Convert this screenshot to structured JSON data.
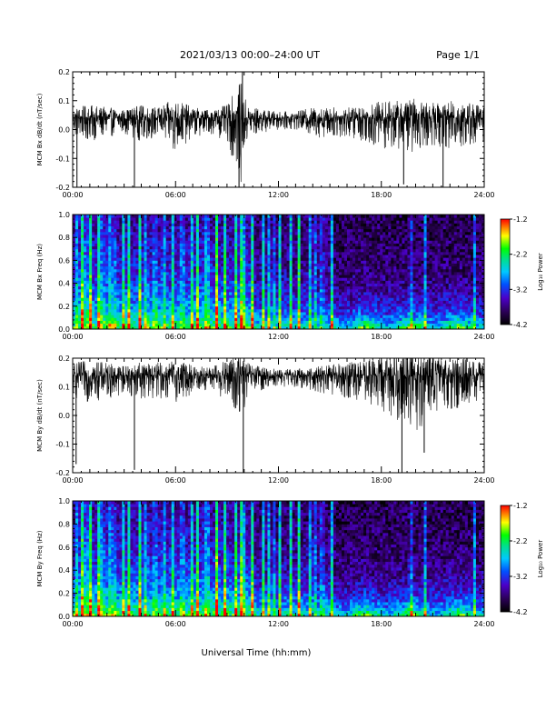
{
  "header": {
    "title": "2021/03/13  00:00–24:00 UT",
    "page_label": "Page 1/1"
  },
  "xaxis_title": "Universal Time (hh:mm)",
  "chart_data": [
    {
      "type": "line",
      "name": "bx-dbdt",
      "ylabel": "MCM Bx dB/dt (nT/sec)",
      "xlim": [
        0,
        24
      ],
      "ylim": [
        -0.2,
        0.2
      ],
      "xticks": [
        "00:00",
        "06:00",
        "12:00",
        "18:00",
        "24:00"
      ],
      "xtick_values": [
        0,
        6,
        12,
        18,
        24
      ],
      "yticks": [
        -0.2,
        -0.1,
        0.0,
        0.1,
        0.2
      ],
      "ytick_labels": [
        "-0.2",
        "-0.1",
        "0.0",
        "0.1",
        "0.2"
      ],
      "baseline": 0.04,
      "amplitude_envelope": {
        "x": [
          0,
          1,
          2,
          3,
          4,
          5,
          6,
          7,
          8,
          9,
          9.8,
          10.2,
          11,
          12,
          13,
          14,
          15,
          16,
          17,
          18,
          19,
          20,
          21,
          22,
          23,
          24
        ],
        "y": [
          0.05,
          0.06,
          0.05,
          0.04,
          0.06,
          0.05,
          0.09,
          0.05,
          0.04,
          0.06,
          0.17,
          0.06,
          0.04,
          0.03,
          0.03,
          0.05,
          0.05,
          0.05,
          0.06,
          0.08,
          0.08,
          0.09,
          0.07,
          0.08,
          0.08,
          0.06
        ]
      },
      "spikes": [
        {
          "x": 0.25,
          "y": -0.2
        },
        {
          "x": 3.6,
          "y": -0.2
        },
        {
          "x": 9.7,
          "y": -0.2
        },
        {
          "x": 9.9,
          "y": 0.2
        },
        {
          "x": 19.3,
          "y": -0.19
        },
        {
          "x": 21.6,
          "y": -0.2
        }
      ]
    },
    {
      "type": "heatmap",
      "name": "bx-freq",
      "ylabel": "MCM Bx Freq (Hz)",
      "colorbar_label": "Log₁₀ Power",
      "xlim": [
        0,
        24
      ],
      "ylim": [
        0,
        1.0
      ],
      "xticks": [
        "00:00",
        "06:00",
        "12:00",
        "18:00",
        "24:00"
      ],
      "xtick_values": [
        0,
        6,
        12,
        18,
        24
      ],
      "yticks": [
        0.0,
        0.2,
        0.4,
        0.6,
        0.8,
        1.0
      ],
      "ytick_labels": [
        "0.0",
        "0.2",
        "0.4",
        "0.6",
        "0.8",
        "1.0"
      ],
      "colorbar_ticks": [
        "-1.2",
        "-2.2",
        "-3.2",
        "-4.2"
      ],
      "colorbar_tick_values": [
        -1.2,
        -2.2,
        -3.2,
        -4.2
      ],
      "color_range": [
        -4.2,
        -1.2
      ],
      "bright_stripes": [
        0.3,
        0.55,
        0.8,
        1.05,
        1.5,
        1.75,
        2.1,
        2.4,
        3.0,
        3.3,
        3.9,
        4.3,
        4.8,
        5.3,
        5.8,
        6.4,
        7.0,
        7.3,
        7.7,
        7.85,
        8.4,
        8.9,
        9.5,
        9.85,
        10.05,
        10.5,
        11.1,
        11.4,
        11.7,
        12.1,
        12.7,
        13.2,
        13.8,
        14.1,
        14.55,
        15.1,
        19.7,
        20.6,
        23.4
      ]
    },
    {
      "type": "line",
      "name": "by-dbdt",
      "ylabel": "MCM By dB/dt (nT/sec)",
      "xlim": [
        0,
        24
      ],
      "ylim": [
        -0.2,
        0.2
      ],
      "xticks": [
        "00:00",
        "06:00",
        "12:00",
        "18:00",
        "24:00"
      ],
      "xtick_values": [
        0,
        6,
        12,
        18,
        24
      ],
      "yticks": [
        -0.2,
        -0.1,
        0.0,
        0.1,
        0.2
      ],
      "ytick_labels": [
        "-0.2",
        "-0.1",
        "0.0",
        "0.1",
        "0.2"
      ],
      "baseline": 0.14,
      "amplitude_envelope": {
        "x": [
          0,
          1,
          2,
          3,
          4,
          5,
          6,
          7,
          8,
          9,
          9.8,
          10.2,
          11,
          12,
          13,
          14,
          15,
          16,
          17,
          18,
          19,
          20,
          21,
          22,
          23,
          24
        ],
        "y": [
          0.06,
          0.07,
          0.06,
          0.05,
          0.06,
          0.06,
          0.07,
          0.05,
          0.04,
          0.07,
          0.12,
          0.06,
          0.04,
          0.03,
          0.03,
          0.04,
          0.05,
          0.06,
          0.07,
          0.09,
          0.12,
          0.15,
          0.1,
          0.09,
          0.08,
          0.06
        ]
      },
      "spikes": [
        {
          "x": 0.2,
          "y": -0.17
        },
        {
          "x": 3.6,
          "y": -0.19
        },
        {
          "x": 9.95,
          "y": -0.2
        },
        {
          "x": 19.2,
          "y": -0.2
        },
        {
          "x": 20.5,
          "y": -0.13
        }
      ]
    },
    {
      "type": "heatmap",
      "name": "by-freq",
      "ylabel": "MCM By Freq (Hz)",
      "colorbar_label": "Log₁₀ Power",
      "xlim": [
        0,
        24
      ],
      "ylim": [
        0,
        1.0
      ],
      "xticks": [
        "00:00",
        "06:00",
        "12:00",
        "18:00",
        "24:00"
      ],
      "xtick_values": [
        0,
        6,
        12,
        18,
        24
      ],
      "yticks": [
        0.0,
        0.2,
        0.4,
        0.6,
        0.8,
        1.0
      ],
      "ytick_labels": [
        "0.0",
        "0.2",
        "0.4",
        "0.6",
        "0.8",
        "1.0"
      ],
      "colorbar_ticks": [
        "-1.2",
        "-2.2",
        "-3.2",
        "-4.2"
      ],
      "colorbar_tick_values": [
        -1.2,
        -2.2,
        -3.2,
        -4.2
      ],
      "color_range": [
        -4.2,
        -1.2
      ],
      "bright_stripes": [
        0.3,
        0.55,
        0.8,
        1.05,
        1.5,
        1.75,
        2.1,
        2.4,
        3.0,
        3.3,
        3.9,
        4.3,
        4.8,
        5.3,
        5.8,
        6.4,
        7.0,
        7.3,
        7.7,
        7.85,
        8.4,
        8.9,
        9.5,
        9.85,
        10.05,
        10.5,
        11.1,
        11.4,
        11.7,
        12.1,
        12.7,
        13.2,
        13.8,
        14.1,
        14.55,
        15.1,
        19.7,
        20.6,
        23.4
      ]
    }
  ]
}
